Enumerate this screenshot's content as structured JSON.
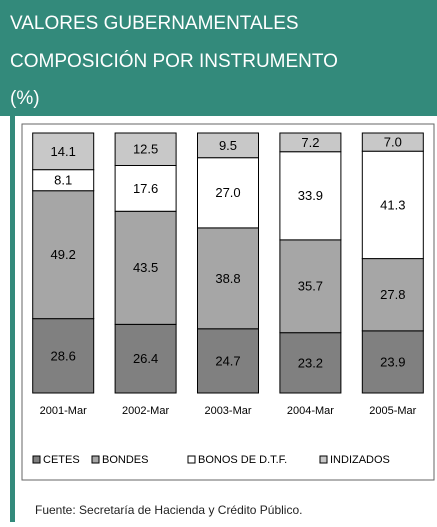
{
  "chart_data": {
    "type": "stacked_bar",
    "title": [
      "VALORES GUBERNAMENTALES",
      "COMPOSICIÓN POR INSTRUMENTO",
      "(%)"
    ],
    "categories": [
      "2001-Mar",
      "2002-Mar",
      "2003-Mar",
      "2004-Mar",
      "2005-Mar"
    ],
    "series": [
      {
        "name": "CETES",
        "color": "#808080",
        "values": [
          28.6,
          26.4,
          24.7,
          23.2,
          23.9
        ]
      },
      {
        "name": "BONDES",
        "color": "#a6a6a6",
        "values": [
          49.2,
          43.5,
          38.8,
          35.7,
          27.8
        ]
      },
      {
        "name": "BONOS DE D.T.F.",
        "color": "#ffffff",
        "values": [
          8.1,
          17.6,
          27.0,
          33.9,
          41.3
        ],
        "value_labels": [
          "8.1",
          "17.6",
          "27.0",
          "33.9",
          "41.3"
        ]
      },
      {
        "name": "INDIZADOS",
        "color": "#c8c8c8",
        "values": [
          14.1,
          12.5,
          9.5,
          7.2,
          7.0
        ],
        "value_labels": [
          "14.1",
          "12.5",
          "9.5",
          "7.2",
          "7.0"
        ]
      }
    ],
    "ylim": [
      0,
      100
    ],
    "source": "Fuente: Secretaría de Hacienda y Crédito Público."
  }
}
